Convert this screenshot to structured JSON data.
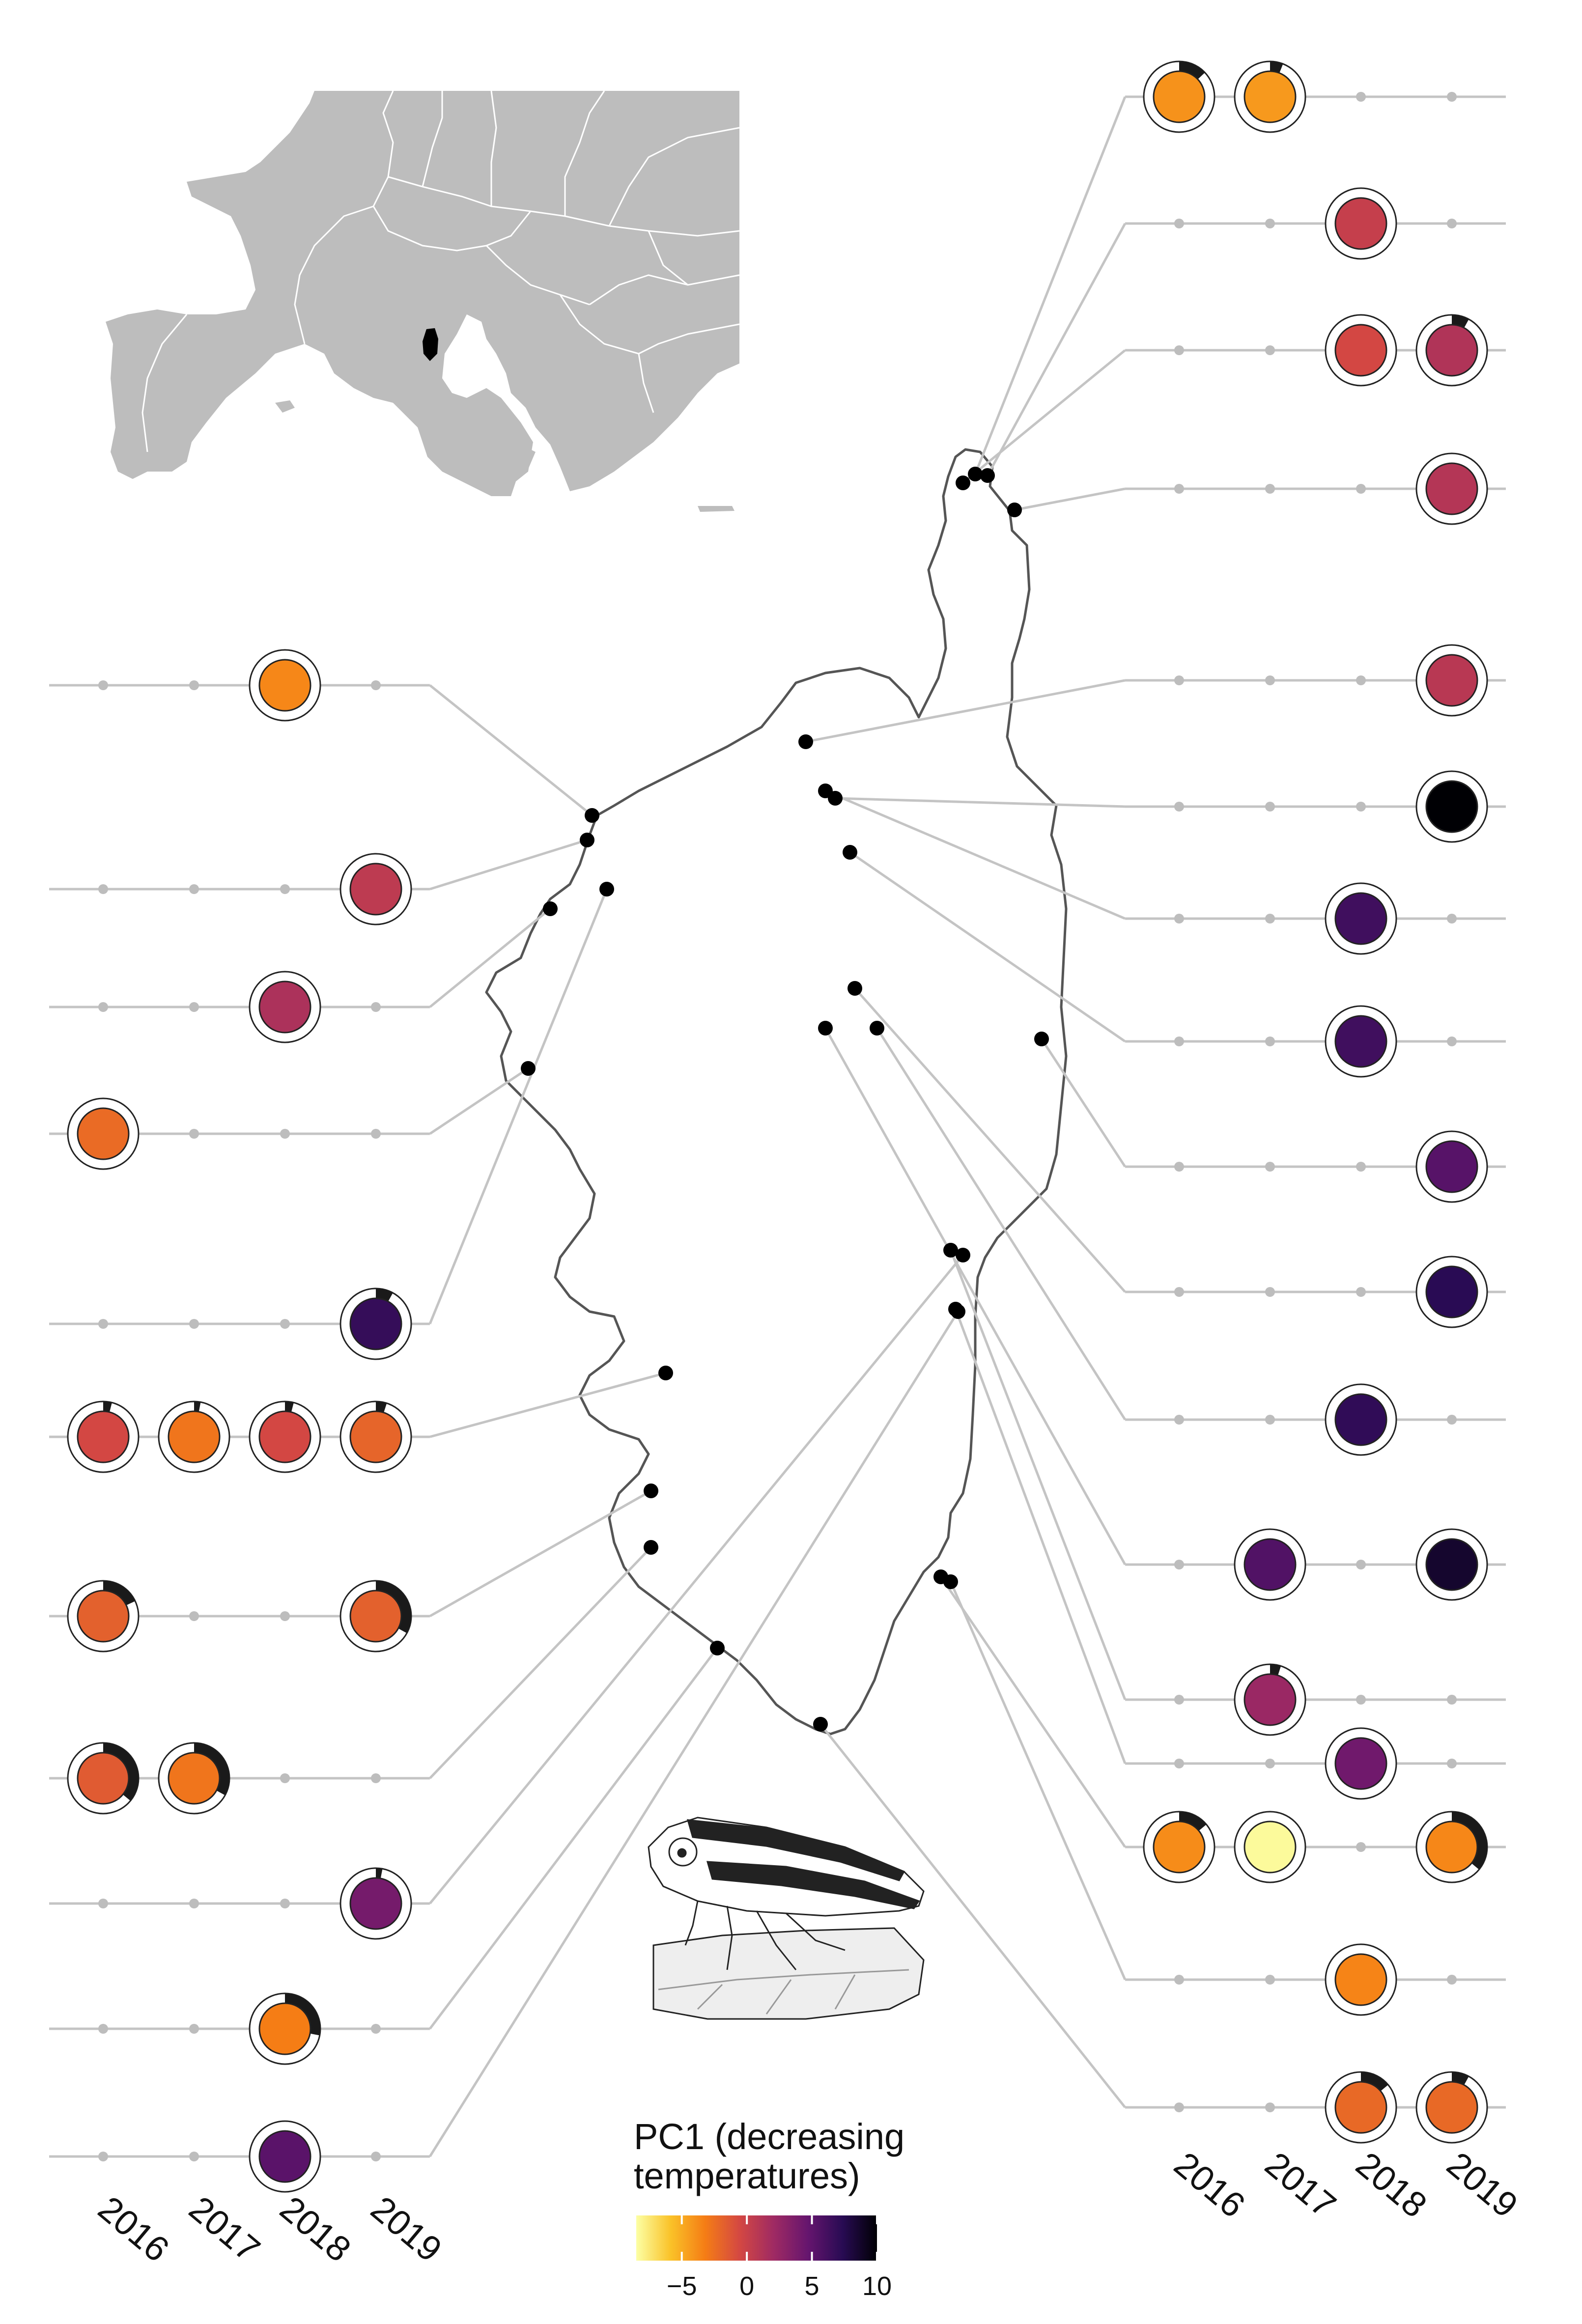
{
  "legend": {
    "title_line1": "PC1 (decreasing",
    "title_line2": "temperatures)",
    "ticks": [
      "−5",
      "0",
      "5",
      "10"
    ],
    "tick_values": [
      -5,
      0,
      5,
      10
    ],
    "range": [
      -8.5,
      10
    ],
    "gradient_colors": [
      "#fcffa4",
      "#fac228",
      "#f57d15",
      "#d44842",
      "#9f2a63",
      "#65156e",
      "#280b53",
      "#000004"
    ]
  },
  "years_left": [
    "2016",
    "2017",
    "2018",
    "2019"
  ],
  "years_right": [
    "2016",
    "2017",
    "2018",
    "2019"
  ],
  "colors": {
    "line": "#c4c4c4",
    "land": "#bdbdbd",
    "border": "#ffffff",
    "outline": "#555555",
    "corsica_inset": "#000000"
  },
  "icons": {
    "inset_map": "europe-inset-map",
    "insect": "leafhopper-illustration"
  },
  "sites": [
    {
      "side": "right",
      "rowY": 197,
      "site": [
        1985,
        965
      ],
      "samples": [
        {
          "year": 2016,
          "pc1": -4.0,
          "frac": 0.13
        },
        {
          "year": 2017,
          "pc1": -4.3,
          "frac": 0.06
        }
      ]
    },
    {
      "side": "right",
      "rowY": 455,
      "site": [
        2010,
        968
      ],
      "samples": [
        {
          "year": 2018,
          "pc1": 0.2,
          "frac": 0
        }
      ]
    },
    {
      "side": "right",
      "rowY": 713,
      "site": [
        1960,
        983
      ],
      "samples": [
        {
          "year": 2018,
          "pc1": -0.5,
          "frac": 0
        },
        {
          "year": 2019,
          "pc1": 1.2,
          "frac": 0.08
        }
      ]
    },
    {
      "side": "right",
      "rowY": 995,
      "site": [
        2065,
        1038
      ],
      "samples": [
        {
          "year": 2019,
          "pc1": 1.0,
          "frac": 0
        }
      ]
    },
    {
      "side": "right",
      "rowY": 1385,
      "site": [
        1640,
        1510
      ],
      "samples": [
        {
          "year": 2019,
          "pc1": 0.8,
          "frac": 0
        }
      ]
    },
    {
      "side": "right",
      "rowY": 1642,
      "site": [
        1700,
        1625
      ],
      "samples": [
        {
          "year": 2019,
          "pc1": 10.0,
          "frac": 0
        }
      ]
    },
    {
      "side": "right",
      "rowY": 1870,
      "site": [
        1680,
        1610
      ],
      "samples": [
        {
          "year": 2018,
          "pc1": 6.3,
          "frac": 0
        }
      ]
    },
    {
      "side": "right",
      "rowY": 2120,
      "site": [
        1730,
        1735
      ],
      "samples": [
        {
          "year": 2018,
          "pc1": 6.3,
          "frac": 0
        }
      ]
    },
    {
      "side": "right",
      "rowY": 2375,
      "site": [
        2120,
        2115
      ],
      "samples": [
        {
          "year": 2019,
          "pc1": 5.3,
          "frac": 0
        }
      ]
    },
    {
      "side": "right",
      "rowY": 2630,
      "site": [
        1740,
        2012
      ],
      "samples": [
        {
          "year": 2019,
          "pc1": 7.3,
          "frac": 0
        }
      ]
    },
    {
      "side": "right",
      "rowY": 2890,
      "site": [
        1785,
        2093
      ],
      "samples": [
        {
          "year": 2018,
          "pc1": 7.0,
          "frac": 0
        }
      ]
    },
    {
      "side": "right",
      "rowY": 3185,
      "site": [
        1680,
        2093
      ],
      "samples": [
        {
          "year": 2017,
          "pc1": 5.6,
          "frac": 0
        },
        {
          "year": 2019,
          "pc1": 8.6,
          "frac": 0
        }
      ]
    },
    {
      "side": "right",
      "rowY": 3460,
      "site": [
        1935,
        2545
      ],
      "samples": [
        {
          "year": 2017,
          "pc1": 2.3,
          "frac": 0.05
        }
      ]
    },
    {
      "side": "right",
      "rowY": 3590,
      "site": [
        1945,
        2665
      ],
      "samples": [
        {
          "year": 2018,
          "pc1": 4.2,
          "frac": 0
        }
      ]
    },
    {
      "side": "right",
      "rowY": 3760,
      "site": [
        1915,
        3210
      ],
      "samples": [
        {
          "year": 2016,
          "pc1": -3.8,
          "frac": 0.14
        },
        {
          "year": 2017,
          "pc1": -8.3,
          "frac": 0
        },
        {
          "year": 2019,
          "pc1": -3.6,
          "frac": 0.36
        }
      ]
    },
    {
      "side": "right",
      "rowY": 4030,
      "site": [
        1935,
        3220
      ],
      "samples": [
        {
          "year": 2018,
          "pc1": -3.5,
          "frac": 0
        }
      ]
    },
    {
      "side": "right",
      "rowY": 4290,
      "site": [
        1670,
        3510
      ],
      "samples": [
        {
          "year": 2018,
          "pc1": -2.2,
          "frac": 0.14
        },
        {
          "year": 2019,
          "pc1": -2.2,
          "frac": 0.08
        }
      ]
    },
    {
      "side": "left",
      "rowY": 1395,
      "site": [
        1205,
        1660
      ],
      "samples": [
        {
          "year": 2018,
          "pc1": -3.6,
          "frac": 0
        }
      ]
    },
    {
      "side": "left",
      "rowY": 1810,
      "site": [
        1195,
        1710
      ],
      "samples": [
        {
          "year": 2019,
          "pc1": 0.6,
          "frac": 0
        }
      ]
    },
    {
      "side": "left",
      "rowY": 2050,
      "site": [
        1120,
        1850
      ],
      "samples": [
        {
          "year": 2018,
          "pc1": 1.4,
          "frac": 0
        }
      ]
    },
    {
      "side": "left",
      "rowY": 2308,
      "site": [
        1075,
        2175
      ],
      "samples": [
        {
          "year": 2016,
          "pc1": -2.3,
          "frac": 0
        }
      ]
    },
    {
      "side": "left",
      "rowY": 2695,
      "site": [
        1235,
        1810
      ],
      "samples": [
        {
          "year": 2019,
          "pc1": 6.8,
          "frac": 0.08
        }
      ]
    },
    {
      "side": "left",
      "rowY": 2925,
      "site": [
        1355,
        2795
      ],
      "samples": [
        {
          "year": 2016,
          "pc1": -0.5,
          "frac": 0.04
        },
        {
          "year": 2017,
          "pc1": -2.8,
          "frac": 0.03
        },
        {
          "year": 2018,
          "pc1": -0.5,
          "frac": 0.04
        },
        {
          "year": 2019,
          "pc1": -2.0,
          "frac": 0.05
        }
      ]
    },
    {
      "side": "left",
      "rowY": 3290,
      "site": [
        1325,
        3035
      ],
      "samples": [
        {
          "year": 2016,
          "pc1": -1.8,
          "frac": 0.18
        },
        {
          "year": 2019,
          "pc1": -1.8,
          "frac": 0.33
        }
      ]
    },
    {
      "side": "left",
      "rowY": 3620,
      "site": [
        1325,
        3150
      ],
      "samples": [
        {
          "year": 2016,
          "pc1": -1.5,
          "frac": 0.36
        },
        {
          "year": 2017,
          "pc1": -2.8,
          "frac": 0.33
        }
      ]
    },
    {
      "side": "left",
      "rowY": 3875,
      "site": [
        1960,
        2555
      ],
      "samples": [
        {
          "year": 2019,
          "pc1": 4.0,
          "frac": 0.03
        }
      ]
    },
    {
      "side": "left",
      "rowY": 4130,
      "site": [
        1460,
        3355
      ],
      "samples": [
        {
          "year": 2018,
          "pc1": -3.2,
          "frac": 0.28
        }
      ]
    },
    {
      "side": "left",
      "rowY": 4390,
      "site": [
        1950,
        2670
      ],
      "samples": [
        {
          "year": 2018,
          "pc1": 5.2,
          "frac": 0
        }
      ]
    }
  ]
}
